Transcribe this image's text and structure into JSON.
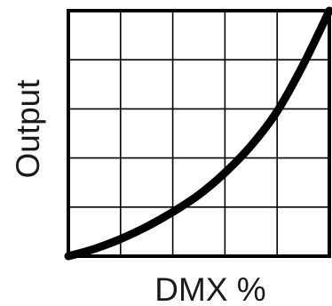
{
  "chart_data": {
    "type": "line",
    "title": "",
    "xlabel": "DMX %",
    "ylabel": "Output",
    "xlim": [
      0,
      100
    ],
    "ylim": [
      0,
      100
    ],
    "grid": true,
    "x_gridlines": [
      20,
      40,
      60,
      80
    ],
    "y_gridlines": [
      20,
      40,
      60,
      80
    ],
    "series": [
      {
        "x": [
          0,
          10,
          20,
          30,
          40,
          50,
          60,
          70,
          80,
          90,
          100
        ],
        "values": [
          0,
          3,
          7,
          12,
          18,
          25,
          34,
          45,
          59,
          78,
          100
        ]
      }
    ],
    "colors": {
      "line": "#000000",
      "grid": "#000000",
      "frame": "#000000",
      "background": "#ffffff"
    }
  }
}
